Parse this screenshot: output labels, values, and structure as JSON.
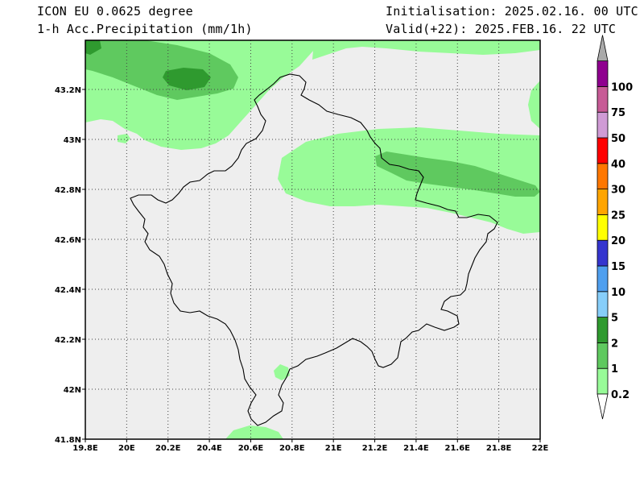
{
  "header": {
    "model": "ICON EU 0.0625 degree",
    "variable": "1-h Acc.Precipitation (mm/1h)",
    "init": "Initialisation: 2025.02.16. 00 UTC",
    "valid": "Valid(+22): 2025.FEB.16. 22 UTC"
  },
  "map": {
    "lon_labels": [
      "19.8E",
      "20E",
      "20.2E",
      "20.4E",
      "20.6E",
      "20.8E",
      "21E",
      "21.2E",
      "21.4E",
      "21.6E",
      "21.8E",
      "22E"
    ],
    "lat_labels": [
      "41.8N",
      "42N",
      "42.2N",
      "42.4N",
      "42.6N",
      "42.8N",
      "43N",
      "43.2N"
    ],
    "background_color": "#eeeeee",
    "border_color": "#000000",
    "grid": "dotted"
  },
  "colorbar": {
    "labels": [
      "0.2",
      "1",
      "2",
      "5",
      "10",
      "15",
      "20",
      "25",
      "30",
      "40",
      "50",
      "75",
      "100"
    ],
    "colors": [
      "#98fb98",
      "#5fc95f",
      "#2f9a2f",
      "#87cefa",
      "#4f9fef",
      "#3535cf",
      "#ffff00",
      "#ffa500",
      "#ff7700",
      "#ff0000",
      "#d09bd5",
      "#c75b96",
      "#8f008f"
    ],
    "over_color": "#aaaaaa",
    "under_color": "#ffffff"
  }
}
